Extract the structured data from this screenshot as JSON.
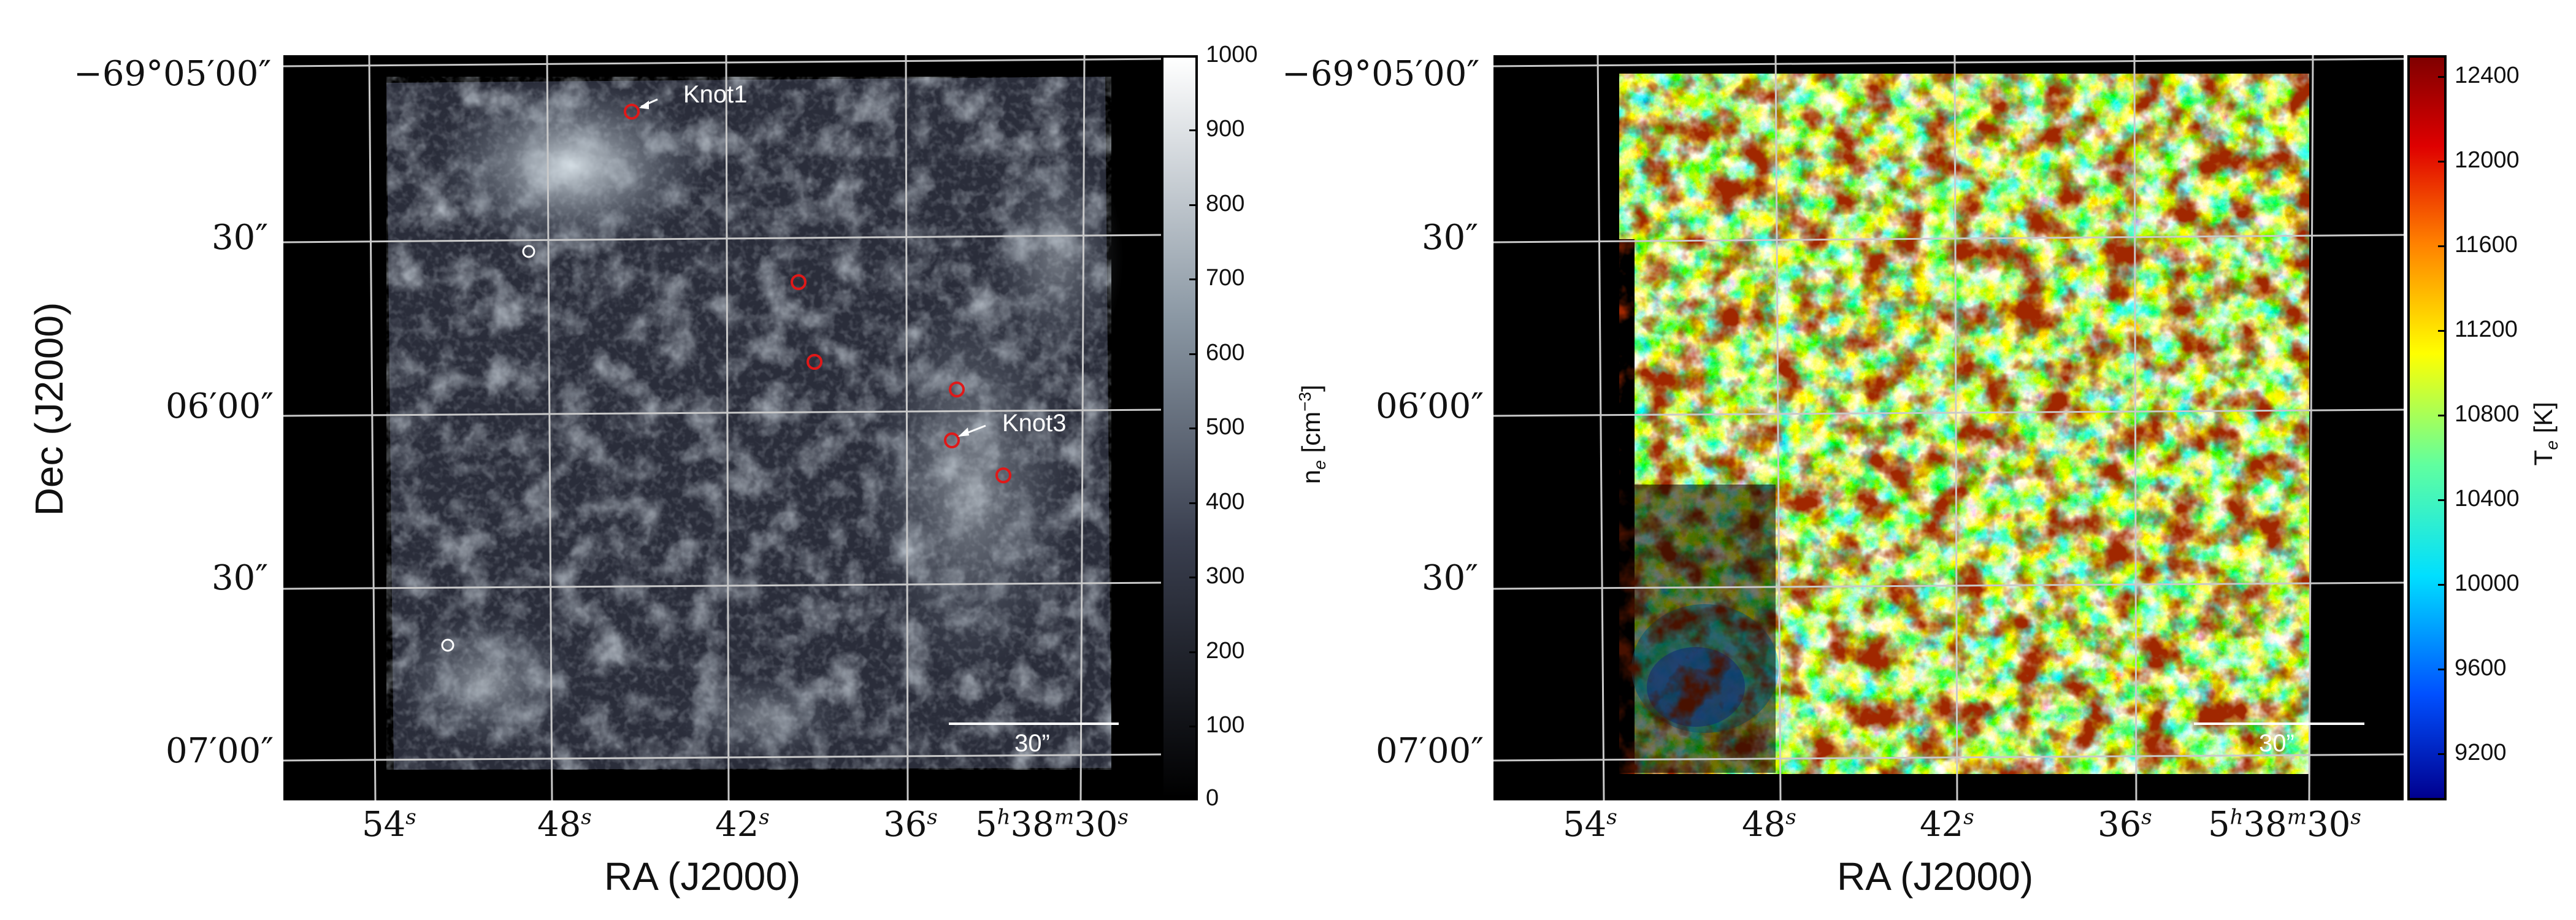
{
  "left": {
    "dec_ticks": [
      "−69°05′00″",
      "30″",
      "06′00″",
      "30″",
      "07′00″"
    ],
    "ra_ticks": [
      "54",
      "48",
      "42",
      "36",
      "5",
      "38",
      "30"
    ],
    "xlabel": "RA (J2000)",
    "ylabel": "Dec (J2000)",
    "annotations": [
      "Knot1",
      "Knot3"
    ],
    "scale_bar": "30”",
    "colorbar": {
      "label_main": "n",
      "label_sub": "e",
      "label_unit": " [cm",
      "label_sup": "−3",
      "label_close": "]",
      "ticks": [
        "1000",
        "900",
        "800",
        "700",
        "600",
        "500",
        "400",
        "300",
        "200",
        "100",
        "0"
      ],
      "colors": [
        "#000000",
        "#3a3f4f",
        "#8b98a4",
        "#ffffff"
      ]
    }
  },
  "right": {
    "dec_ticks": [
      "−69°05′00″",
      "30″",
      "06′00″",
      "30″",
      "07′00″"
    ],
    "ra_ticks": [
      "54",
      "48",
      "42",
      "36",
      "5",
      "38",
      "30"
    ],
    "xlabel": "RA (J2000)",
    "scale_bar": "30”",
    "colorbar": {
      "label_main": "T",
      "label_sub": "e",
      "label_unit": " [K]",
      "ticks": [
        "12400",
        "12000",
        "11600",
        "11200",
        "10800",
        "10400",
        "10000",
        "9600",
        "9200"
      ],
      "colors": [
        "#00008f",
        "#0050ff",
        "#00dfff",
        "#60ff9f",
        "#ffff00",
        "#ff8000",
        "#df0000",
        "#800000"
      ]
    }
  }
}
